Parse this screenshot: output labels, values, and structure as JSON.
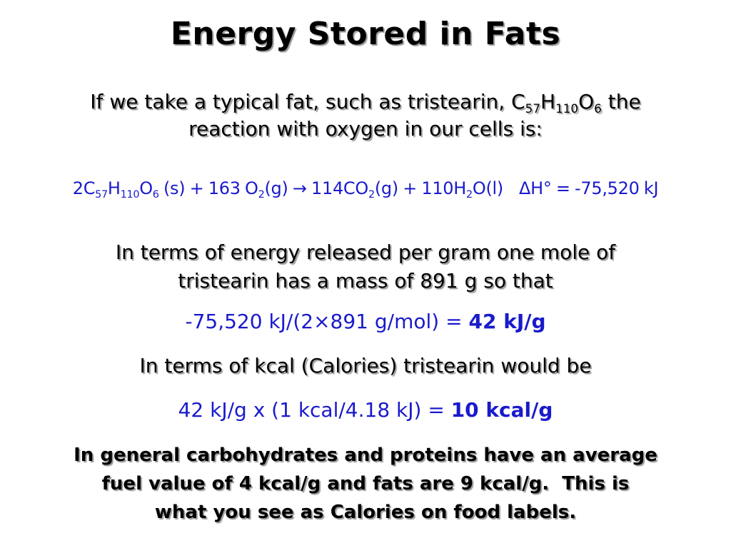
{
  "slide": {
    "title": "Energy Stored in Fats",
    "intro": {
      "line1_pre": "If we take a typical fat, such as tristearin, C",
      "c_sub": "57",
      "h": "H",
      "h_sub": "110",
      "o": "O",
      "o_sub": "6",
      "line1_post": " the",
      "line2": "reaction with oxygen in our cells is:"
    },
    "equation": {
      "t1": "2C",
      "s1": "57",
      "t2": "H",
      "s2": "110",
      "t3": "O",
      "s3": "6",
      "t4": " (s) + 163 O",
      "s4": "2",
      "t5": "(g) → 114CO",
      "s5": "2",
      "t6": "(g) + 110H",
      "s6": "2",
      "t7": "O(l)",
      "delta_h": "ΔH° = -75,520 kJ"
    },
    "energy_text": {
      "line1": "In terms of energy released per gram one mole of",
      "line2": "tristearin has a mass of 891 g so that"
    },
    "calc1": {
      "expr": "-75,520 kJ/(2×891 g/mol) = ",
      "result": "42 kJ/g"
    },
    "kcal_text": "In terms of kcal (Calories) tristearin would be",
    "calc2": {
      "expr": "42 kJ/g x (1 kcal/4.18 kJ) = ",
      "result": "10 kcal/g"
    },
    "general": {
      "line1": "In general carbohydrates and proteins have an average",
      "line2": "fuel value of 4 kcal/g and fats are 9 kcal/g.  This is",
      "line3": "what you see as Calories on food labels."
    },
    "colors": {
      "accent_blue": "#1a1acc",
      "text": "#000000",
      "shadow": "#9a9a9a"
    }
  }
}
